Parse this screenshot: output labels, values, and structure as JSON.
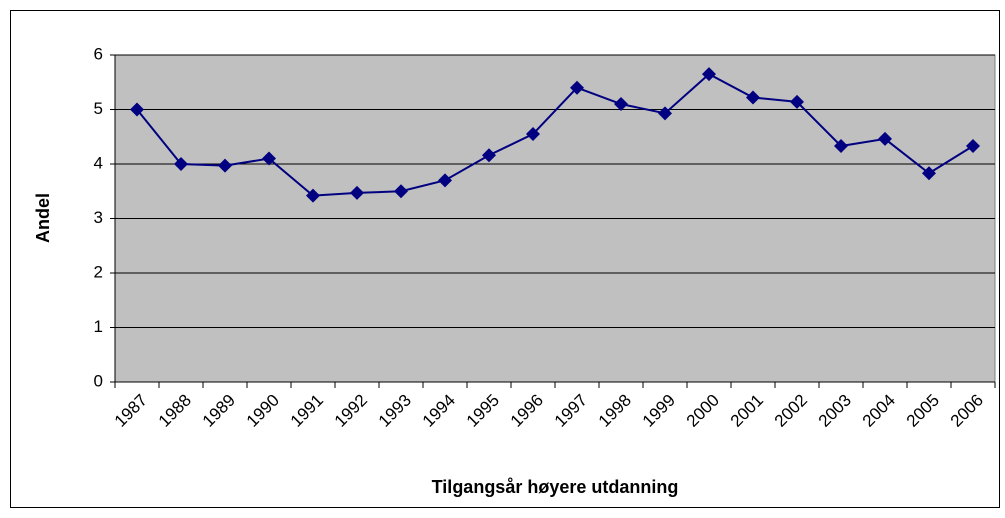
{
  "chart_data": {
    "type": "line",
    "x_label": "Tilgangsår høyere utdanning",
    "y_label": "Andel",
    "categories": [
      "1987",
      "1988",
      "1989",
      "1990",
      "1991",
      "1992",
      "1993",
      "1994",
      "1995",
      "1996",
      "1997",
      "1998",
      "1999",
      "2000",
      "2001",
      "2002",
      "2003",
      "2004",
      "2005",
      "2006"
    ],
    "values": [
      5.0,
      4.0,
      3.97,
      4.1,
      3.42,
      3.47,
      3.5,
      3.7,
      4.16,
      4.55,
      5.4,
      5.1,
      4.93,
      5.65,
      5.22,
      5.14,
      4.33,
      4.46,
      3.83,
      4.33
    ],
    "color": "#000080",
    "ylim": [
      0,
      6
    ],
    "yticks": [
      0,
      1,
      2,
      3,
      4,
      5,
      6
    ],
    "grid": true
  }
}
